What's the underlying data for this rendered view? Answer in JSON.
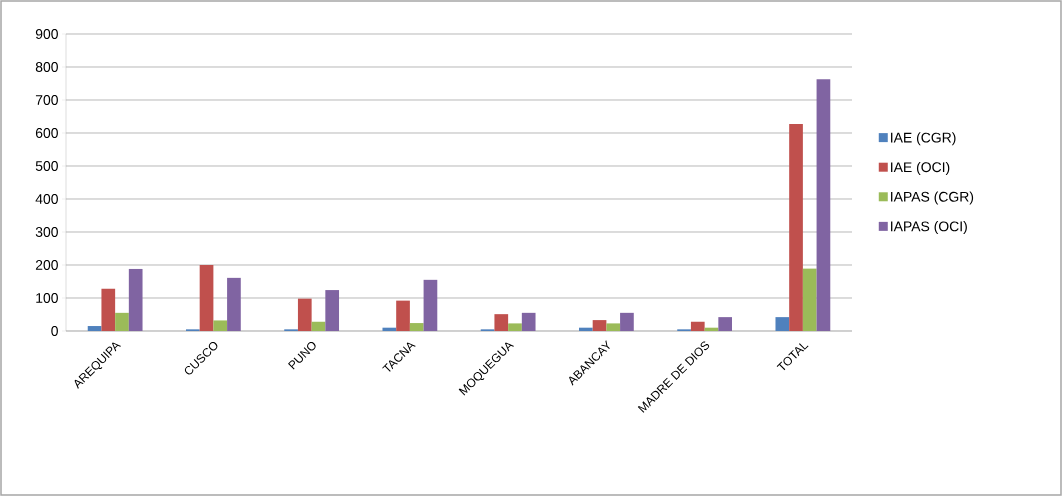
{
  "chart_data": {
    "type": "bar",
    "categories": [
      "AREQUIPA",
      "CUSCO",
      "PUNO",
      "TACNA",
      "MOQUEGUA",
      "ABANCAY",
      "MADRE DE DIOS",
      "TOTAL"
    ],
    "series": [
      {
        "name": "IAE (CGR)",
        "color": "#4f81bd",
        "values": [
          15,
          5,
          5,
          10,
          5,
          10,
          5,
          42
        ]
      },
      {
        "name": "IAE (OCI)",
        "color": "#c0504d",
        "values": [
          128,
          200,
          98,
          92,
          51,
          33,
          28,
          627
        ]
      },
      {
        "name": "IAPAS (CGR)",
        "color": "#9bbb59",
        "values": [
          55,
          32,
          28,
          24,
          23,
          23,
          10,
          189
        ]
      },
      {
        "name": "IAPAS (OCI)",
        "color": "#8064a2",
        "values": [
          188,
          161,
          124,
          155,
          55,
          55,
          42,
          763
        ]
      }
    ],
    "ylim": [
      0,
      900
    ],
    "yticks": [
      0,
      100,
      200,
      300,
      400,
      500,
      600,
      700,
      800,
      900
    ],
    "grid": "y",
    "legend": "right"
  }
}
